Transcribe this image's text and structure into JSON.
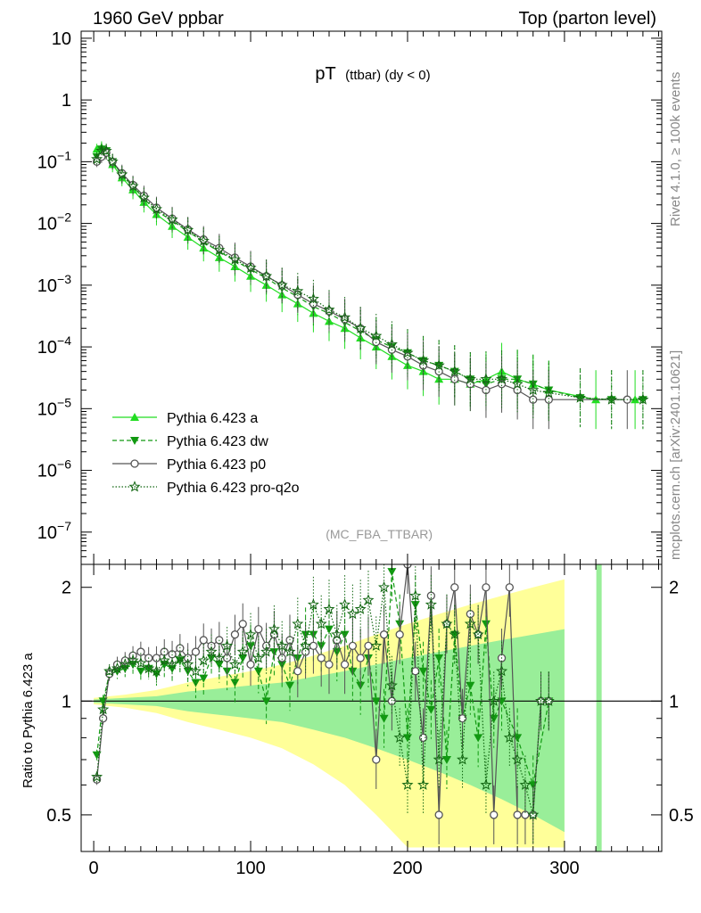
{
  "header": {
    "left": "1960 GeV ppbar",
    "right": "Top (parton level)"
  },
  "plot_title": {
    "main": "pT",
    "sub": "(ttbar) (dy < 0)"
  },
  "analysis_tag": "(MC_FBA_TTBAR)",
  "side_labels": {
    "rivet": "Rivet 4.1.0, ≥ 100k events",
    "mcplots": "mcplots.cern.ch [arXiv:2401.10621]"
  },
  "ratio_ylabel": "Ratio to Pythia 6.423 a",
  "colors": {
    "a": "#22dd22",
    "dw": "#119911",
    "p0": "#555555",
    "proq2o": "#116611",
    "band_yellow": "#ffff99",
    "band_green": "#99ee99"
  },
  "legend": [
    {
      "key": "a",
      "label": "Pythia 6.423 a"
    },
    {
      "key": "dw",
      "label": "Pythia 6.423 dw"
    },
    {
      "key": "p0",
      "label": "Pythia 6.423 p0"
    },
    {
      "key": "proq2o",
      "label": "Pythia 6.423 pro-q2o"
    }
  ],
  "chart_data": [
    {
      "type": "line",
      "title": "pT (ttbar) (dy < 0)",
      "xlabel": "",
      "ylabel": "",
      "yscale": "log",
      "xlim": [
        -8,
        362
      ],
      "ylim": [
        3e-08,
        13
      ],
      "y_tick_labels": [
        "10^-7",
        "10^-6",
        "10^-5",
        "10^-4",
        "10^-3",
        "10^-2",
        "10^-1",
        "1",
        "10"
      ],
      "x_ticks": [
        0,
        100,
        200,
        300
      ],
      "series": [
        {
          "name": "Pythia 6.423 a",
          "key": "a",
          "x": [
            2,
            5,
            8,
            12,
            18,
            25,
            32,
            40,
            50,
            60,
            70,
            80,
            90,
            100,
            110,
            120,
            130,
            140,
            150,
            160,
            170,
            180,
            190,
            200,
            210,
            220,
            230,
            240,
            250,
            260,
            270,
            280,
            290,
            320,
            345
          ],
          "y": [
            0.16,
            0.17,
            0.14,
            0.09,
            0.055,
            0.035,
            0.022,
            0.014,
            0.009,
            0.006,
            0.004,
            0.0028,
            0.002,
            0.0014,
            0.001,
            0.0007,
            0.0005,
            0.00035,
            0.00026,
            0.0002,
            0.00014,
            0.0001,
            7e-05,
            5e-05,
            4e-05,
            3e-05,
            3e-05,
            2.5e-05,
            3e-05,
            4e-05,
            3e-05,
            2.5e-05,
            2e-05,
            1.4e-05,
            1.4e-05
          ]
        },
        {
          "name": "Pythia 6.423 dw",
          "key": "dw",
          "x": [
            2,
            5,
            8,
            12,
            18,
            25,
            32,
            40,
            50,
            60,
            70,
            80,
            90,
            100,
            110,
            120,
            130,
            140,
            150,
            160,
            170,
            180,
            190,
            200,
            210,
            220,
            230,
            240,
            250,
            260,
            270,
            280,
            290,
            310,
            330,
            350
          ],
          "y": [
            0.12,
            0.16,
            0.15,
            0.1,
            0.06,
            0.04,
            0.025,
            0.016,
            0.011,
            0.0075,
            0.005,
            0.0035,
            0.0025,
            0.0018,
            0.0013,
            0.0009,
            0.00065,
            0.00045,
            0.00035,
            0.00025,
            0.00018,
            0.00013,
            0.0001,
            8e-05,
            6e-05,
            5e-05,
            4e-05,
            3e-05,
            2.5e-05,
            3e-05,
            3e-05,
            2.5e-05,
            2e-05,
            1.5e-05,
            1.4e-05,
            1.4e-05
          ]
        },
        {
          "name": "Pythia 6.423 p0",
          "key": "p0",
          "x": [
            2,
            5,
            8,
            12,
            18,
            25,
            32,
            40,
            50,
            60,
            70,
            80,
            90,
            100,
            110,
            120,
            130,
            140,
            150,
            160,
            170,
            180,
            190,
            200,
            210,
            220,
            230,
            240,
            250,
            260,
            270,
            280,
            290,
            340
          ],
          "y": [
            0.1,
            0.12,
            0.14,
            0.1,
            0.065,
            0.042,
            0.028,
            0.018,
            0.012,
            0.008,
            0.0055,
            0.004,
            0.0028,
            0.002,
            0.0014,
            0.001,
            0.0007,
            0.0005,
            0.00038,
            0.00028,
            0.0002,
            0.00012,
            9e-05,
            7e-05,
            5e-05,
            4e-05,
            3e-05,
            2.5e-05,
            2e-05,
            2.5e-05,
            2e-05,
            1.4e-05,
            1.4e-05,
            1.4e-05
          ]
        },
        {
          "name": "Pythia 6.423 pro-q2o",
          "key": "proq2o",
          "x": [
            2,
            5,
            8,
            12,
            18,
            25,
            32,
            40,
            50,
            60,
            70,
            80,
            90,
            100,
            110,
            120,
            130,
            140,
            150,
            160,
            170,
            180,
            190,
            200,
            210,
            220,
            230,
            240,
            250,
            260,
            270,
            280,
            290,
            310,
            330,
            350
          ],
          "y": [
            0.11,
            0.15,
            0.15,
            0.1,
            0.062,
            0.04,
            0.026,
            0.017,
            0.0115,
            0.0078,
            0.0052,
            0.0037,
            0.0026,
            0.0019,
            0.0014,
            0.001,
            0.0008,
            0.0006,
            0.0004,
            0.0003,
            0.0002,
            0.00015,
            0.00011,
            8e-05,
            6e-05,
            5e-05,
            4e-05,
            3e-05,
            3e-05,
            3e-05,
            2.5e-05,
            2e-05,
            1.8e-05,
            1.5e-05,
            1.4e-05,
            1.4e-05
          ]
        }
      ]
    },
    {
      "type": "line",
      "title": "",
      "xlabel": "",
      "ylabel": "Ratio to Pythia 6.423 a",
      "xlim": [
        -8,
        362
      ],
      "ylim": [
        0.4,
        2.3
      ],
      "y_ticks": [
        0.5,
        1,
        2
      ],
      "x_ticks": [
        0,
        100,
        200,
        300
      ],
      "x_tick_labels": [
        "0",
        "100",
        "200",
        "300"
      ],
      "bands": {
        "x": [
          0,
          20,
          40,
          60,
          80,
          100,
          120,
          140,
          160,
          180,
          200,
          220,
          240,
          260,
          280,
          300
        ],
        "yellow_half_width": [
          0.02,
          0.04,
          0.07,
          0.12,
          0.16,
          0.2,
          0.25,
          0.32,
          0.4,
          0.5,
          0.6,
          0.7,
          0.8,
          0.9,
          1.0,
          1.1
        ],
        "green_half_width": [
          0.01,
          0.02,
          0.03,
          0.06,
          0.08,
          0.1,
          0.12,
          0.16,
          0.2,
          0.25,
          0.3,
          0.35,
          0.4,
          0.45,
          0.5,
          0.55
        ],
        "isolated_green_x": 322
      },
      "series": [
        {
          "name": "Pythia 6.423 dw",
          "key": "dw",
          "x": [
            2,
            6,
            10,
            15,
            20,
            25,
            30,
            35,
            40,
            45,
            50,
            55,
            60,
            65,
            70,
            75,
            80,
            85,
            90,
            95,
            100,
            105,
            110,
            115,
            120,
            125,
            130,
            135,
            140,
            145,
            150,
            155,
            160,
            165,
            170,
            175,
            180,
            185,
            190,
            195,
            200,
            205,
            210,
            215,
            220,
            225,
            230,
            235,
            240,
            245,
            250,
            255,
            260,
            270,
            280,
            290
          ],
          "y": [
            0.72,
            1.0,
            1.18,
            1.2,
            1.22,
            1.25,
            1.2,
            1.22,
            1.18,
            1.25,
            1.22,
            1.28,
            1.2,
            1.12,
            1.15,
            1.3,
            1.25,
            1.2,
            1.12,
            1.3,
            1.4,
            1.2,
            1.0,
            1.35,
            1.25,
            1.1,
            1.3,
            1.5,
            1.5,
            1.4,
            1.55,
            1.35,
            1.5,
            1.2,
            1.1,
            1.3,
            1.0,
            0.9,
            2.2,
            1.6,
            0.8,
            1.8,
            1.2,
            0.95,
            1.3,
            0.7,
            1.5,
            0.9,
            1.1,
            0.8,
            1.6,
            0.9,
            1.0,
            0.8,
            0.6,
            1.0
          ]
        },
        {
          "name": "Pythia 6.423 p0",
          "key": "p0",
          "x": [
            2,
            6,
            10,
            15,
            20,
            25,
            30,
            35,
            40,
            45,
            50,
            55,
            60,
            65,
            70,
            75,
            80,
            85,
            90,
            95,
            100,
            105,
            110,
            115,
            120,
            125,
            130,
            135,
            140,
            145,
            150,
            155,
            160,
            165,
            170,
            175,
            180,
            185,
            190,
            195,
            200,
            205,
            210,
            215,
            220,
            225,
            230,
            235,
            240,
            245,
            250,
            255,
            260,
            265,
            270,
            275,
            280,
            285,
            290
          ],
          "y": [
            0.62,
            0.9,
            1.18,
            1.25,
            1.28,
            1.32,
            1.35,
            1.3,
            1.3,
            1.35,
            1.33,
            1.38,
            1.3,
            1.35,
            1.45,
            1.4,
            1.45,
            1.3,
            1.5,
            1.6,
            1.25,
            1.55,
            1.4,
            1.5,
            1.3,
            1.45,
            1.2,
            1.35,
            1.4,
            1.3,
            1.25,
            1.45,
            1.25,
            1.4,
            1.3,
            1.4,
            0.7,
            1.5,
            1.0,
            1.5,
            2.3,
            1.2,
            0.8,
            1.9,
            0.5,
            1.6,
            2.0,
            0.9,
            1.7,
            1.5,
            2.0,
            0.5,
            1.3,
            2.0,
            0.5,
            0.5,
            0.5,
            1.0,
            1.0
          ]
        },
        {
          "name": "Pythia 6.423 pro-q2o",
          "key": "proq2o",
          "x": [
            2,
            6,
            10,
            15,
            20,
            25,
            30,
            35,
            40,
            45,
            50,
            55,
            60,
            65,
            70,
            75,
            80,
            85,
            90,
            95,
            100,
            105,
            110,
            115,
            120,
            125,
            130,
            135,
            140,
            145,
            150,
            155,
            160,
            165,
            170,
            175,
            180,
            185,
            190,
            195,
            200,
            205,
            210,
            215,
            220,
            225,
            230,
            235,
            240,
            245,
            250,
            255,
            260,
            265,
            270,
            275,
            280,
            285,
            290
          ],
          "y": [
            0.63,
            0.95,
            1.2,
            1.22,
            1.25,
            1.28,
            1.26,
            1.22,
            1.2,
            1.28,
            1.25,
            1.3,
            1.25,
            1.2,
            1.28,
            1.35,
            1.3,
            1.4,
            1.25,
            1.35,
            1.5,
            1.3,
            1.35,
            1.55,
            1.4,
            1.35,
            1.6,
            1.4,
            1.8,
            1.6,
            1.75,
            1.5,
            1.8,
            1.7,
            1.75,
            1.85,
            1.4,
            2.0,
            1.1,
            0.8,
            0.6,
            1.9,
            0.6,
            1.8,
            0.7,
            1.6,
            1.5,
            0.7,
            1.6,
            1.5,
            0.6,
            1.0,
            1.2,
            0.8,
            0.7,
            0.6,
            0.5,
            1.0,
            1.0
          ]
        }
      ]
    }
  ]
}
